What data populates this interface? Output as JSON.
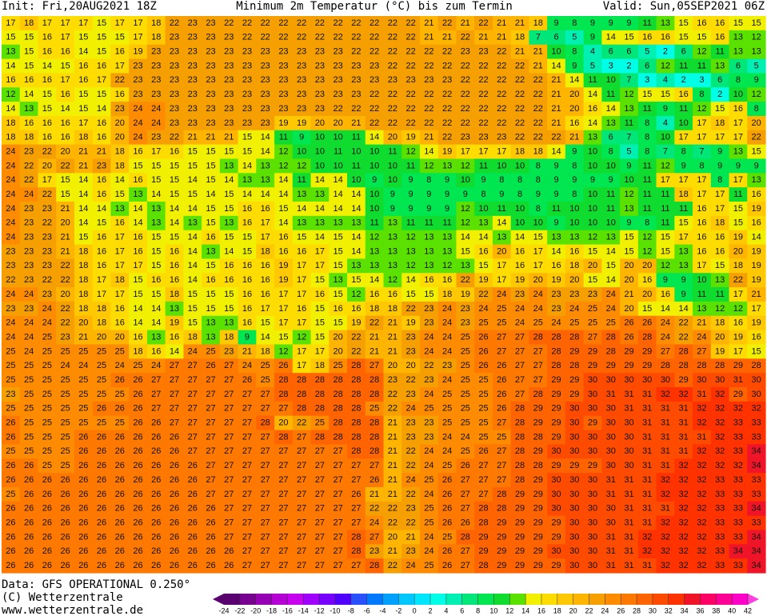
{
  "header": {
    "init": "Init: Fri,20AUG2021 18Z",
    "title": "Minimum 2m Temperatur (°C) bis zum Termin",
    "valid": "Valid: Sun,05SEP2021 06Z"
  },
  "footer": {
    "data": "Data: GFS OPERATIONAL 0.250°",
    "copyright": "(C) Wetterzentrale",
    "url": "www.wetterzentrale.de"
  },
  "colorbar": {
    "ticks": [
      -24,
      -22,
      -20,
      -18,
      -16,
      -14,
      -12,
      -10,
      -8,
      -6,
      -4,
      -2,
      0,
      2,
      4,
      6,
      8,
      10,
      12,
      14,
      16,
      18,
      20,
      22,
      24,
      26,
      28,
      30,
      32,
      34,
      36,
      38,
      40,
      42
    ],
    "colors": [
      "#5a0070",
      "#780090",
      "#9600b4",
      "#b400d2",
      "#c800f0",
      "#a000ff",
      "#7800ff",
      "#5000ff",
      "#2850ff",
      "#0078ff",
      "#00a0ff",
      "#00c8ff",
      "#00e6ff",
      "#00ffe6",
      "#00f0b4",
      "#00e678",
      "#00e650",
      "#10dc30",
      "#5ae100",
      "#f0f000",
      "#ffdc00",
      "#ffc800",
      "#ffb400",
      "#f5a000",
      "#ff8c00",
      "#ff7800",
      "#ff6400",
      "#ff4b00",
      "#ff3200",
      "#f01428",
      "#ff0064",
      "#ff0096",
      "#ff00c8",
      "#ff40e0"
    ]
  },
  "grid": [
    [
      17,
      18,
      17,
      17,
      17,
      15,
      17,
      17,
      18,
      22,
      23,
      23,
      22,
      22,
      22,
      22,
      22,
      22,
      22,
      22,
      22,
      22,
      22,
      21,
      22,
      21,
      22,
      21,
      21,
      18,
      9,
      8,
      9,
      9,
      9,
      11,
      13,
      15,
      16,
      16,
      15,
      15
    ],
    [
      15,
      15,
      16,
      17,
      15,
      15,
      15,
      17,
      18,
      23,
      23,
      23,
      23,
      22,
      22,
      22,
      22,
      22,
      22,
      22,
      22,
      22,
      22,
      21,
      21,
      22,
      21,
      21,
      18,
      7,
      6,
      5,
      9,
      14,
      15,
      16,
      16,
      15,
      15,
      16,
      13,
      12
    ],
    [
      13,
      15,
      16,
      16,
      14,
      15,
      16,
      19,
      23,
      23,
      23,
      23,
      23,
      23,
      23,
      23,
      23,
      23,
      23,
      22,
      22,
      22,
      22,
      22,
      22,
      23,
      23,
      22,
      21,
      21,
      10,
      8,
      4,
      6,
      6,
      5,
      2,
      6,
      12,
      11,
      13,
      13
    ],
    [
      14,
      15,
      14,
      15,
      16,
      16,
      17,
      23,
      23,
      23,
      23,
      23,
      23,
      23,
      23,
      23,
      23,
      23,
      23,
      23,
      23,
      22,
      22,
      22,
      22,
      22,
      22,
      22,
      22,
      21,
      14,
      9,
      5,
      3,
      2,
      6,
      12,
      11,
      11,
      13,
      6,
      5
    ],
    [
      16,
      16,
      16,
      17,
      16,
      17,
      22,
      23,
      23,
      23,
      23,
      23,
      23,
      23,
      23,
      23,
      23,
      23,
      23,
      23,
      23,
      23,
      23,
      23,
      23,
      22,
      22,
      22,
      22,
      22,
      21,
      14,
      11,
      10,
      7,
      3,
      4,
      2,
      3,
      6,
      8,
      9
    ],
    [
      12,
      14,
      15,
      16,
      15,
      15,
      16,
      23,
      23,
      23,
      23,
      23,
      23,
      23,
      23,
      23,
      23,
      23,
      23,
      23,
      22,
      22,
      22,
      22,
      22,
      22,
      22,
      22,
      22,
      22,
      21,
      20,
      14,
      11,
      12,
      15,
      15,
      16,
      8,
      2,
      10,
      12
    ],
    [
      14,
      13,
      15,
      14,
      15,
      14,
      23,
      24,
      24,
      23,
      23,
      23,
      23,
      23,
      23,
      23,
      23,
      23,
      22,
      22,
      22,
      22,
      22,
      22,
      22,
      22,
      22,
      22,
      22,
      22,
      21,
      20,
      16,
      14,
      13,
      11,
      9,
      11,
      12,
      15,
      16,
      8
    ],
    [
      18,
      16,
      16,
      16,
      17,
      16,
      20,
      24,
      24,
      23,
      23,
      23,
      23,
      23,
      23,
      19,
      19,
      20,
      20,
      21,
      22,
      22,
      22,
      22,
      22,
      22,
      22,
      22,
      22,
      22,
      21,
      16,
      14,
      13,
      11,
      8,
      4,
      10,
      17,
      18,
      17,
      20
    ],
    [
      18,
      18,
      16,
      16,
      18,
      16,
      20,
      24,
      23,
      22,
      21,
      21,
      21,
      15,
      14,
      11,
      9,
      10,
      10,
      11,
      14,
      20,
      19,
      21,
      22,
      23,
      23,
      23,
      22,
      22,
      22,
      21,
      13,
      6,
      7,
      8,
      10,
      17,
      17,
      17,
      17,
      22
    ],
    [
      24,
      23,
      22,
      20,
      21,
      21,
      18,
      16,
      17,
      16,
      15,
      15,
      15,
      15,
      14,
      12,
      10,
      10,
      11,
      10,
      10,
      11,
      12,
      14,
      19,
      17,
      17,
      17,
      18,
      18,
      14,
      9,
      10,
      8,
      5,
      8,
      7,
      8,
      7,
      9,
      13,
      15
    ],
    [
      24,
      22,
      20,
      22,
      21,
      23,
      18,
      15,
      15,
      15,
      15,
      15,
      13,
      14,
      13,
      12,
      12,
      10,
      10,
      11,
      10,
      10,
      11,
      12,
      13,
      12,
      11,
      10,
      10,
      8,
      9,
      8,
      10,
      10,
      9,
      11,
      12,
      9,
      8,
      9,
      9,
      9
    ],
    [
      24,
      22,
      17,
      15,
      14,
      16,
      14,
      16,
      15,
      15,
      14,
      15,
      14,
      13,
      13,
      14,
      11,
      14,
      14,
      10,
      9,
      10,
      9,
      8,
      9,
      10,
      9,
      8,
      8,
      8,
      9,
      9,
      9,
      9,
      10,
      11,
      17,
      17,
      17,
      8,
      17,
      13
    ],
    [
      24,
      24,
      22,
      15,
      14,
      16,
      15,
      13,
      14,
      15,
      15,
      14,
      15,
      14,
      14,
      14,
      13,
      13,
      14,
      14,
      10,
      9,
      9,
      9,
      9,
      9,
      8,
      9,
      8,
      9,
      9,
      8,
      10,
      11,
      12,
      11,
      11,
      18,
      17,
      17,
      11,
      16
    ],
    [
      24,
      23,
      23,
      21,
      14,
      14,
      13,
      14,
      13,
      14,
      14,
      15,
      15,
      16,
      16,
      15,
      14,
      14,
      14,
      14,
      10,
      9,
      9,
      9,
      9,
      12,
      10,
      11,
      10,
      8,
      11,
      10,
      10,
      11,
      13,
      11,
      11,
      11,
      16,
      17,
      15,
      19
    ],
    [
      24,
      23,
      22,
      20,
      14,
      15,
      16,
      14,
      13,
      14,
      13,
      15,
      13,
      16,
      17,
      14,
      13,
      13,
      13,
      13,
      11,
      13,
      11,
      11,
      11,
      12,
      13,
      14,
      10,
      10,
      9,
      10,
      10,
      10,
      9,
      8,
      11,
      15,
      16,
      18,
      15,
      16
    ],
    [
      24,
      23,
      23,
      21,
      15,
      16,
      17,
      16,
      15,
      15,
      14,
      16,
      15,
      15,
      17,
      16,
      15,
      14,
      15,
      14,
      12,
      13,
      12,
      13,
      13,
      14,
      14,
      13,
      14,
      15,
      13,
      13,
      12,
      13,
      15,
      12,
      15,
      17,
      16,
      16,
      19,
      14
    ],
    [
      23,
      23,
      23,
      21,
      18,
      16,
      17,
      16,
      15,
      16,
      14,
      13,
      14,
      15,
      18,
      16,
      16,
      17,
      15,
      14,
      13,
      13,
      13,
      13,
      13,
      15,
      16,
      20,
      16,
      17,
      14,
      16,
      15,
      14,
      15,
      12,
      15,
      13,
      16,
      16,
      20,
      19
    ],
    [
      23,
      23,
      23,
      22,
      18,
      16,
      17,
      17,
      15,
      16,
      14,
      15,
      16,
      16,
      16,
      19,
      17,
      17,
      15,
      13,
      13,
      13,
      12,
      13,
      12,
      13,
      15,
      17,
      16,
      17,
      16,
      18,
      20,
      15,
      20,
      20,
      12,
      13,
      17,
      15,
      18,
      19
    ],
    [
      22,
      23,
      22,
      22,
      18,
      17,
      18,
      15,
      16,
      16,
      14,
      16,
      16,
      16,
      16,
      19,
      17,
      15,
      13,
      15,
      14,
      12,
      14,
      16,
      16,
      22,
      19,
      17,
      19,
      20,
      19,
      20,
      15,
      14,
      20,
      16,
      9,
      9,
      10,
      13,
      22,
      19
    ],
    [
      24,
      24,
      23,
      20,
      18,
      17,
      17,
      15,
      15,
      18,
      15,
      15,
      15,
      16,
      16,
      17,
      17,
      16,
      15,
      12,
      16,
      16,
      15,
      15,
      18,
      19,
      22,
      24,
      23,
      24,
      23,
      23,
      23,
      24,
      21,
      20,
      16,
      9,
      11,
      11,
      17,
      21
    ],
    [
      23,
      23,
      24,
      22,
      18,
      18,
      16,
      14,
      14,
      13,
      15,
      15,
      15,
      16,
      17,
      17,
      16,
      15,
      16,
      16,
      18,
      18,
      22,
      23,
      24,
      23,
      24,
      25,
      24,
      24,
      23,
      24,
      25,
      24,
      20,
      15,
      14,
      14,
      13,
      12,
      12,
      17
    ],
    [
      24,
      24,
      24,
      22,
      20,
      18,
      16,
      14,
      14,
      19,
      15,
      13,
      13,
      16,
      15,
      17,
      17,
      15,
      15,
      19,
      22,
      21,
      19,
      23,
      24,
      23,
      25,
      25,
      24,
      25,
      24,
      25,
      25,
      25,
      26,
      26,
      24,
      22,
      21,
      18,
      16,
      19
    ],
    [
      24,
      24,
      25,
      23,
      21,
      20,
      20,
      16,
      13,
      16,
      18,
      13,
      18,
      9,
      14,
      15,
      12,
      15,
      20,
      22,
      21,
      21,
      23,
      24,
      24,
      25,
      26,
      27,
      27,
      28,
      28,
      28,
      27,
      28,
      26,
      28,
      24,
      22,
      24,
      20,
      19,
      16
    ],
    [
      25,
      24,
      25,
      25,
      25,
      25,
      25,
      18,
      16,
      14,
      24,
      25,
      23,
      21,
      18,
      12,
      17,
      17,
      20,
      22,
      21,
      21,
      23,
      24,
      24,
      25,
      26,
      27,
      27,
      27,
      28,
      29,
      29,
      28,
      29,
      29,
      27,
      28,
      27,
      19,
      17,
      15
    ],
    [
      25,
      25,
      25,
      24,
      24,
      25,
      24,
      25,
      24,
      27,
      27,
      26,
      27,
      24,
      25,
      26,
      17,
      18,
      25,
      28,
      27,
      20,
      20,
      22,
      23,
      25,
      26,
      26,
      27,
      27,
      28,
      28,
      29,
      29,
      29,
      29,
      28,
      28,
      28,
      28,
      29,
      28
    ],
    [
      25,
      25,
      25,
      25,
      25,
      25,
      26,
      26,
      27,
      27,
      27,
      27,
      27,
      26,
      25,
      28,
      28,
      28,
      28,
      28,
      28,
      23,
      22,
      23,
      24,
      25,
      25,
      26,
      27,
      27,
      29,
      29,
      30,
      30,
      30,
      30,
      30,
      29,
      30,
      30,
      31,
      30
    ],
    [
      23,
      25,
      25,
      25,
      25,
      25,
      25,
      26,
      27,
      27,
      27,
      27,
      27,
      27,
      27,
      28,
      28,
      28,
      28,
      28,
      28,
      22,
      23,
      24,
      25,
      25,
      25,
      26,
      27,
      28,
      29,
      29,
      30,
      31,
      31,
      31,
      32,
      32,
      31,
      32,
      29,
      30
    ],
    [
      25,
      25,
      25,
      25,
      25,
      26,
      26,
      26,
      27,
      27,
      27,
      27,
      27,
      27,
      27,
      27,
      28,
      28,
      28,
      28,
      25,
      22,
      24,
      25,
      25,
      25,
      25,
      26,
      28,
      29,
      29,
      30,
      30,
      30,
      31,
      31,
      31,
      31,
      32,
      32,
      32,
      32
    ],
    [
      26,
      25,
      25,
      25,
      25,
      25,
      25,
      26,
      26,
      27,
      27,
      27,
      27,
      27,
      28,
      20,
      22,
      25,
      28,
      28,
      28,
      21,
      23,
      23,
      25,
      25,
      25,
      27,
      28,
      29,
      29,
      30,
      29,
      30,
      30,
      31,
      31,
      31,
      32,
      32,
      33,
      33
    ],
    [
      26,
      25,
      25,
      25,
      26,
      26,
      26,
      26,
      26,
      26,
      27,
      27,
      27,
      27,
      27,
      28,
      27,
      28,
      28,
      28,
      28,
      21,
      23,
      23,
      24,
      24,
      25,
      25,
      28,
      28,
      29,
      30,
      30,
      30,
      30,
      31,
      31,
      31,
      31,
      32,
      33,
      33
    ],
    [
      25,
      25,
      25,
      25,
      26,
      26,
      26,
      26,
      26,
      26,
      27,
      27,
      27,
      27,
      27,
      27,
      27,
      27,
      27,
      28,
      28,
      21,
      22,
      24,
      24,
      25,
      26,
      27,
      28,
      29,
      30,
      30,
      30,
      30,
      30,
      31,
      31,
      31,
      32,
      32,
      33,
      34
    ],
    [
      26,
      26,
      25,
      25,
      26,
      26,
      26,
      26,
      26,
      26,
      26,
      27,
      27,
      27,
      27,
      27,
      27,
      27,
      27,
      27,
      27,
      21,
      22,
      24,
      25,
      26,
      27,
      27,
      28,
      28,
      29,
      29,
      29,
      30,
      30,
      31,
      31,
      32,
      32,
      32,
      32,
      34
    ],
    [
      26,
      26,
      26,
      26,
      26,
      26,
      26,
      26,
      26,
      26,
      26,
      27,
      27,
      27,
      27,
      27,
      27,
      27,
      27,
      27,
      26,
      21,
      24,
      25,
      26,
      27,
      27,
      27,
      28,
      29,
      30,
      30,
      30,
      31,
      31,
      31,
      32,
      32,
      32,
      33,
      33,
      33
    ],
    [
      25,
      26,
      26,
      26,
      26,
      26,
      26,
      26,
      26,
      26,
      26,
      27,
      27,
      27,
      27,
      27,
      27,
      27,
      27,
      26,
      21,
      21,
      22,
      24,
      26,
      27,
      27,
      28,
      29,
      29,
      30,
      30,
      30,
      31,
      31,
      31,
      32,
      32,
      32,
      33,
      33,
      33
    ],
    [
      26,
      26,
      26,
      26,
      26,
      26,
      26,
      26,
      26,
      26,
      26,
      26,
      27,
      27,
      27,
      27,
      27,
      27,
      27,
      27,
      22,
      22,
      23,
      25,
      26,
      27,
      28,
      28,
      29,
      29,
      30,
      30,
      30,
      30,
      31,
      31,
      31,
      32,
      32,
      33,
      33,
      34
    ],
    [
      26,
      26,
      26,
      26,
      26,
      26,
      26,
      26,
      26,
      26,
      26,
      26,
      27,
      27,
      27,
      27,
      27,
      27,
      27,
      27,
      24,
      22,
      22,
      25,
      26,
      26,
      28,
      29,
      29,
      29,
      29,
      30,
      30,
      30,
      31,
      31,
      32,
      32,
      32,
      33,
      33,
      33
    ],
    [
      26,
      26,
      26,
      26,
      26,
      26,
      26,
      26,
      26,
      26,
      26,
      26,
      27,
      27,
      27,
      27,
      27,
      27,
      27,
      28,
      27,
      20,
      21,
      24,
      25,
      28,
      29,
      29,
      29,
      29,
      29,
      30,
      30,
      31,
      31,
      32,
      32,
      32,
      32,
      33,
      33,
      34
    ],
    [
      26,
      26,
      26,
      26,
      26,
      26,
      26,
      26,
      26,
      26,
      26,
      26,
      26,
      27,
      27,
      27,
      27,
      27,
      27,
      28,
      23,
      21,
      23,
      24,
      26,
      27,
      29,
      29,
      29,
      29,
      30,
      30,
      30,
      31,
      31,
      32,
      32,
      32,
      32,
      33,
      34,
      34
    ],
    [
      26,
      26,
      26,
      26,
      26,
      26,
      26,
      26,
      26,
      26,
      26,
      26,
      26,
      27,
      27,
      27,
      27,
      27,
      27,
      27,
      28,
      22,
      24,
      25,
      26,
      27,
      28,
      29,
      29,
      29,
      29,
      30,
      30,
      31,
      31,
      31,
      32,
      32,
      32,
      33,
      33,
      34
    ]
  ]
}
